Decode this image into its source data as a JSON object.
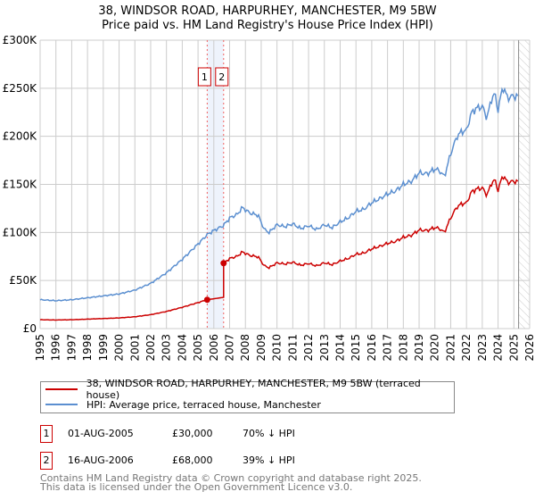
{
  "title_line1": "38, WINDSOR ROAD, HARPURHEY, MANCHESTER, M9 5BW",
  "title_line2": "Price paid vs. HM Land Registry's House Price Index (HPI)",
  "colors": {
    "property": "#cc0000",
    "hpi": "#5b8fd0",
    "grid": "#cccccc",
    "marker_box": "#cc0000"
  },
  "chart_data": {
    "type": "line",
    "ylim": [
      0,
      300000
    ],
    "xlim": [
      1995,
      2026
    ],
    "ytick_labels": [
      "£0",
      "£50K",
      "£100K",
      "£150K",
      "£200K",
      "£250K",
      "£300K"
    ],
    "ytick_values": [
      0,
      50000,
      100000,
      150000,
      200000,
      250000,
      300000
    ],
    "xtick_labels": [
      "1995",
      "1996",
      "1997",
      "1998",
      "1999",
      "2000",
      "2001",
      "2002",
      "2003",
      "2004",
      "2005",
      "2006",
      "2007",
      "2008",
      "2009",
      "2010",
      "2011",
      "2012",
      "2013",
      "2014",
      "2015",
      "2016",
      "2017",
      "2018",
      "2019",
      "2020",
      "2021",
      "2022",
      "2023",
      "2024",
      "2025",
      "2026"
    ],
    "grid": true,
    "data_end": 2025.3,
    "series": [
      {
        "name": "HPI: Average price, terraced house, Manchester",
        "x": [
          1995,
          1996,
          1997,
          1998,
          1999,
          2000,
          2001,
          2002,
          2003,
          2004,
          2004.5,
          2005,
          2005.6,
          2006,
          2006.6,
          2007,
          2007.5,
          2007.8,
          2008.3,
          2008.8,
          2009.2,
          2009.5,
          2010,
          2010.5,
          2011,
          2011.5,
          2012,
          2012.5,
          2013,
          2013.5,
          2014,
          2014.5,
          2015,
          2015.5,
          2016,
          2016.5,
          2017,
          2017.5,
          2018,
          2018.5,
          2019,
          2019.5,
          2020,
          2020.3,
          2020.6,
          2021,
          2021.4,
          2021.7,
          2022,
          2022.3,
          2022.6,
          2023,
          2023.3,
          2023.6,
          2023.8,
          2024,
          2024.3,
          2024.6,
          2025,
          2025.3
        ],
        "y": [
          30000,
          29000,
          30000,
          32000,
          34000,
          36000,
          40000,
          47000,
          58000,
          72000,
          80000,
          88000,
          98000,
          102000,
          107000,
          115000,
          119000,
          126000,
          120000,
          118000,
          103000,
          100000,
          108000,
          106000,
          109000,
          104000,
          107000,
          103000,
          108000,
          105000,
          111000,
          115000,
          122000,
          124000,
          131000,
          135000,
          140000,
          143000,
          150000,
          153000,
          162000,
          161000,
          166000,
          164000,
          158000,
          182000,
          200000,
          205000,
          206000,
          224000,
          229000,
          231000,
          219000,
          240000,
          244000,
          227000,
          252000,
          240000,
          242000,
          241000
        ]
      },
      {
        "name": "38, WINDSOR ROAD, HARPURHEY, MANCHESTER, M9 5BW (terraced house)",
        "derived_from_hpi": true
      }
    ],
    "sales": [
      {
        "id": "1",
        "date": "01-AUG-2005",
        "x": 2005.58,
        "price": 30000,
        "hpi_diff": "70% ↓ HPI"
      },
      {
        "id": "2",
        "date": "16-AUG-2006",
        "x": 2006.62,
        "price": 68000,
        "hpi_diff": "39% ↓ HPI"
      }
    ]
  },
  "legend": {
    "property": "38, WINDSOR ROAD, HARPURHEY, MANCHESTER, M9 5BW (terraced house)",
    "hpi": "HPI: Average price, terraced house, Manchester"
  },
  "table": [
    {
      "id": "1",
      "date": "01-AUG-2005",
      "price": "£30,000",
      "diff": "70% ↓ HPI"
    },
    {
      "id": "2",
      "date": "16-AUG-2006",
      "price": "£68,000",
      "diff": "39% ↓ HPI"
    }
  ],
  "footer_line1": "Contains HM Land Registry data © Crown copyright and database right 2025.",
  "footer_line2": "This data is licensed under the Open Government Licence v3.0."
}
